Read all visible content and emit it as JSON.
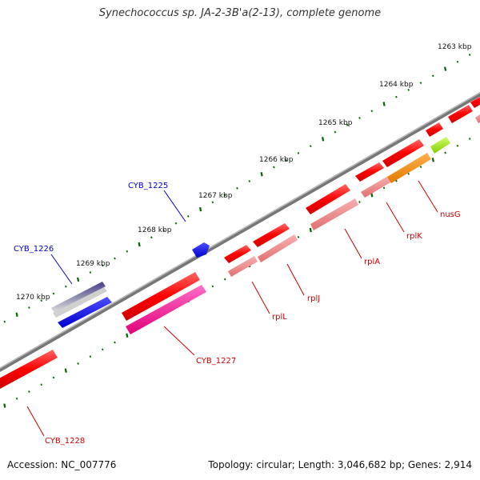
{
  "title": "Synechococcus sp. JA-2-3B'a(2-13), complete genome",
  "footer": {
    "accession": "Accession: NC_007776",
    "summary": "Topology: circular; Length: 3,046,682 bp; Genes: 2,914"
  },
  "scale_labels": [
    "1263 kbp",
    "1264 kbp",
    "1265 kbp",
    "1266 kbp",
    "1267 kbp",
    "1268 kbp",
    "1269 kbp",
    "1270 kbp"
  ],
  "colors": {
    "backbone": "#888888",
    "red": "#ff0000",
    "light_red": "#f08080",
    "magenta": "#ff1493",
    "blue": "#0000ff",
    "dark_slate": "#483d8b",
    "orange": "#ff8c00",
    "lime": "#9acd32",
    "tick": "#006400",
    "label_blue": "#0000cc",
    "label_red": "#cc0000"
  },
  "gene_labels": {
    "cyb_1225": "CYB_1225",
    "cyb_1226": "CYB_1226",
    "cyb_1227": "CYB_1227",
    "cyb_1228": "CYB_1228",
    "rplL": "rplL",
    "rplJ": "rplJ",
    "rplA": "rplA",
    "rplK": "rplK",
    "nusG": "nusG"
  }
}
